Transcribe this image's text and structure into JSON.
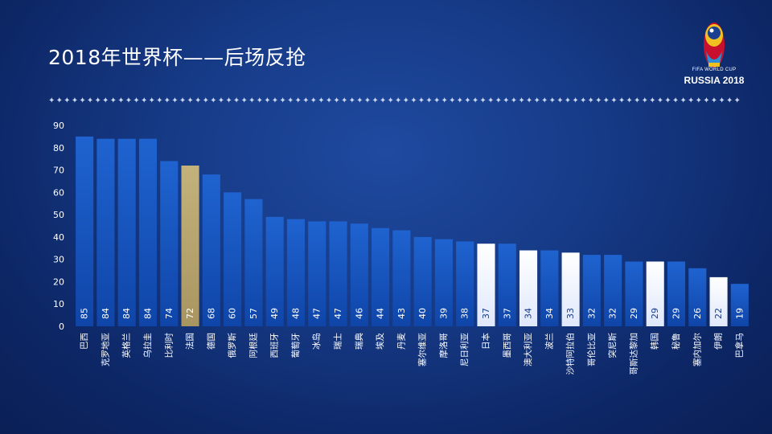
{
  "slide": {
    "title": "2018年世界杯——后场反抢",
    "logo": {
      "line1": "FIFA WORLD CUP",
      "line2": "RUSSIA 2018"
    }
  },
  "colors": {
    "bar_blue": "#1a5cc4",
    "bar_highlight": "#b5a36e",
    "bar_light": "#f2f6ff",
    "value_label_light": "#ffffff",
    "value_label_dark": "#1a3d8a"
  },
  "chart_data": {
    "type": "bar",
    "ylim": [
      0,
      90
    ],
    "yticks": [
      0,
      10,
      20,
      30,
      40,
      50,
      60,
      70,
      80,
      90
    ],
    "grid": false,
    "categories": [
      "巴西",
      "克罗地亚",
      "英格兰",
      "乌拉圭",
      "比利时",
      "法国",
      "德国",
      "俄罗斯",
      "阿根廷",
      "西班牙",
      "葡萄牙",
      "冰岛",
      "瑞士",
      "瑞典",
      "埃及",
      "丹麦",
      "塞尔维亚",
      "摩洛哥",
      "尼日利亚",
      "日本",
      "墨西哥",
      "澳大利亚",
      "波兰",
      "沙特阿拉伯",
      "哥伦比亚",
      "突尼斯",
      "哥斯达黎加",
      "韩国",
      "秘鲁",
      "塞内加尔",
      "伊朗",
      "巴拿马"
    ],
    "values": [
      85,
      84,
      84,
      84,
      74,
      72,
      68,
      60,
      57,
      49,
      48,
      47,
      47,
      46,
      44,
      43,
      40,
      39,
      38,
      37,
      37,
      34,
      34,
      33,
      32,
      32,
      29,
      29,
      29,
      26,
      22,
      19
    ],
    "highlight": [
      "normal",
      "normal",
      "normal",
      "normal",
      "normal",
      "gold",
      "normal",
      "normal",
      "normal",
      "normal",
      "normal",
      "normal",
      "normal",
      "normal",
      "normal",
      "normal",
      "normal",
      "normal",
      "normal",
      "light",
      "normal",
      "light",
      "normal",
      "light",
      "normal",
      "normal",
      "normal",
      "light",
      "normal",
      "normal",
      "light",
      "normal"
    ]
  }
}
